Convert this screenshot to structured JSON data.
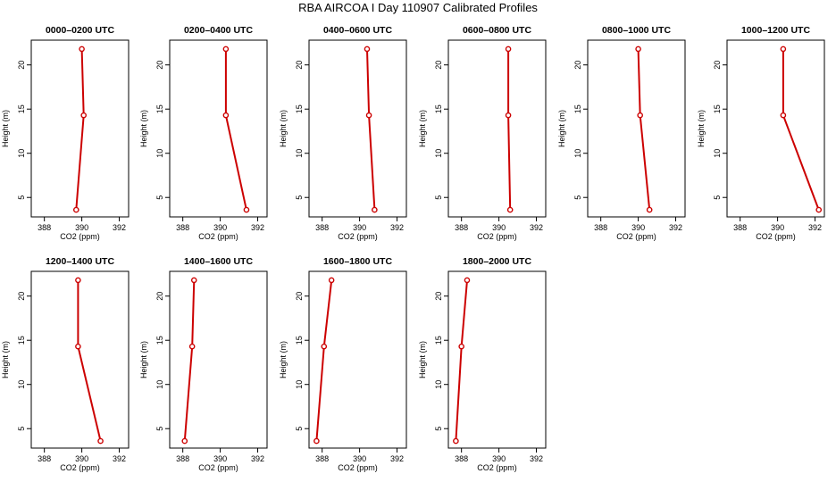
{
  "title": "RBA AIRCOA I  Day 110907  Calibrated Profiles",
  "chart_data": {
    "type": "line",
    "title": "RBA AIRCOA I  Day 110907  Calibrated Profiles",
    "xlabel": "CO2 (ppm)",
    "ylabel": "Height (m)",
    "xlim": [
      387.3,
      392.5
    ],
    "ylim": [
      2.8,
      22.8
    ],
    "xticks": [
      388,
      390,
      392
    ],
    "yticks": [
      5,
      10,
      15,
      20
    ],
    "xtick_labels": [
      "388",
      "390",
      "392"
    ],
    "ytick_labels": [
      "5",
      "10",
      "15",
      "20"
    ],
    "heights": [
      3.6,
      14.3,
      21.8
    ],
    "panels": [
      {
        "title": "0000–0200 UTC",
        "co2": [
          389.7,
          390.1,
          390.0
        ]
      },
      {
        "title": "0200–0400 UTC",
        "co2": [
          391.4,
          390.3,
          390.3
        ]
      },
      {
        "title": "0400–0600 UTC",
        "co2": [
          390.8,
          390.5,
          390.4
        ]
      },
      {
        "title": "0600–0800 UTC",
        "co2": [
          390.6,
          390.5,
          390.5
        ]
      },
      {
        "title": "0800–1000 UTC",
        "co2": [
          390.6,
          390.1,
          390.0
        ]
      },
      {
        "title": "1000–1200 UTC",
        "co2": [
          392.2,
          390.3,
          390.3
        ]
      },
      {
        "title": "1200–1400 UTC",
        "co2": [
          391.0,
          389.8,
          389.8
        ]
      },
      {
        "title": "1400–1600 UTC",
        "co2": [
          388.1,
          388.5,
          388.6
        ]
      },
      {
        "title": "1600–1800 UTC",
        "co2": [
          387.7,
          388.1,
          388.5
        ]
      },
      {
        "title": "1800–2000 UTC",
        "co2": [
          387.7,
          388.0,
          388.3
        ]
      }
    ]
  }
}
